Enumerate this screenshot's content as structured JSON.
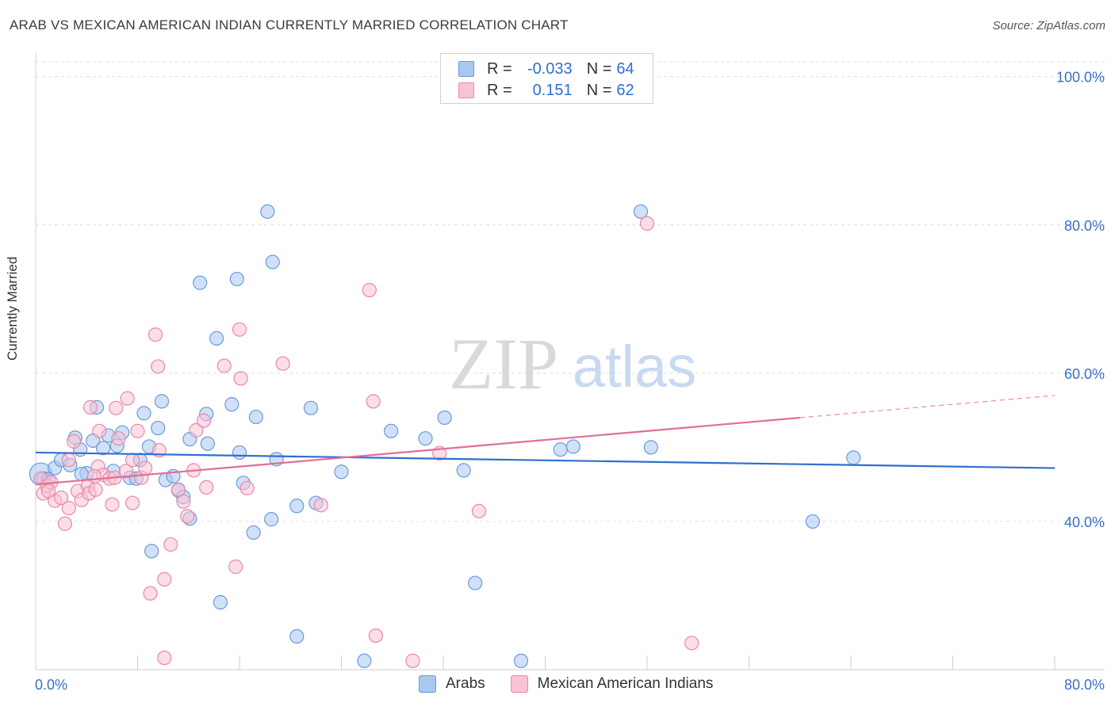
{
  "header": {
    "title": "ARAB VS MEXICAN AMERICAN INDIAN CURRENTLY MARRIED CORRELATION CHART",
    "source": "Source: ZipAtlas.com"
  },
  "watermark": {
    "zip": "ZIP",
    "atlas": "atlas"
  },
  "legend": {
    "rows": [
      {
        "r_label": "R =",
        "r_value": "-0.033",
        "n_label": "N =",
        "n_value": "64",
        "color": "#a9c8f0",
        "stroke": "#6a9ad8"
      },
      {
        "r_label": "R =",
        "r_value": "0.151",
        "n_label": "N =",
        "n_value": "62",
        "color": "#f8c3d3",
        "stroke": "#e889a7"
      }
    ]
  },
  "bottom_legend": {
    "items": [
      {
        "label": "Arabs",
        "color": "#a9c8f0",
        "stroke": "#6a9ad8"
      },
      {
        "label": "Mexican American Indians",
        "color": "#f8c3d3",
        "stroke": "#e889a7"
      }
    ]
  },
  "chart_data": {
    "type": "scatter",
    "title": "ARAB VS MEXICAN AMERICAN INDIAN CURRENTLY MARRIED CORRELATION CHART",
    "xlabel": "",
    "ylabel": "Currently Married",
    "xlim": [
      0,
      80
    ],
    "ylim": [
      20,
      102
    ],
    "x_tick_labels": [
      "0.0%",
      "80.0%"
    ],
    "y_ticks": [
      40,
      60,
      80,
      100
    ],
    "y_tick_labels": [
      "40.0%",
      "60.0%",
      "80.0%",
      "100.0%"
    ],
    "grid": true,
    "legend_position": "top-center",
    "series": [
      {
        "name": "Arabs",
        "color": "#6a9ad8",
        "fill": "#a9c8f0",
        "trend": {
          "x": [
            0,
            80
          ],
          "y": [
            49.3,
            47.2
          ],
          "dashed_from": null
        },
        "points": [
          [
            0.4,
            46.4
          ],
          [
            0.6,
            45.8
          ],
          [
            1.0,
            45.7
          ],
          [
            1.5,
            47.2
          ],
          [
            2.0,
            48.3
          ],
          [
            2.7,
            47.6
          ],
          [
            3.1,
            51.3
          ],
          [
            3.5,
            49.7
          ],
          [
            4.0,
            46.5
          ],
          [
            4.5,
            50.9
          ],
          [
            4.8,
            55.4
          ],
          [
            5.3,
            49.9
          ],
          [
            5.7,
            51.6
          ],
          [
            6.1,
            46.8
          ],
          [
            6.4,
            50.2
          ],
          [
            6.8,
            52.0
          ],
          [
            7.4,
            45.9
          ],
          [
            7.9,
            45.8
          ],
          [
            8.2,
            48.3
          ],
          [
            8.5,
            54.6
          ],
          [
            8.9,
            50.1
          ],
          [
            9.6,
            52.6
          ],
          [
            9.9,
            56.2
          ],
          [
            10.2,
            45.6
          ],
          [
            10.8,
            46.1
          ],
          [
            11.2,
            44.2
          ],
          [
            11.6,
            43.3
          ],
          [
            12.1,
            40.4
          ],
          [
            12.9,
            72.2
          ],
          [
            12.1,
            51.1
          ],
          [
            13.4,
            54.5
          ],
          [
            13.5,
            50.5
          ],
          [
            14.2,
            64.7
          ],
          [
            14.5,
            29.1
          ],
          [
            15.4,
            55.8
          ],
          [
            15.8,
            72.7
          ],
          [
            16.0,
            49.3
          ],
          [
            16.3,
            45.2
          ],
          [
            17.1,
            38.5
          ],
          [
            17.3,
            54.1
          ],
          [
            18.2,
            81.8
          ],
          [
            18.6,
            75.0
          ],
          [
            18.5,
            40.3
          ],
          [
            18.9,
            48.4
          ],
          [
            20.5,
            42.1
          ],
          [
            21.6,
            55.3
          ],
          [
            22.0,
            42.5
          ],
          [
            24.0,
            46.7
          ],
          [
            20.5,
            24.5
          ],
          [
            25.8,
            21.2
          ],
          [
            27.9,
            52.2
          ],
          [
            30.6,
            51.2
          ],
          [
            32.1,
            54.0
          ],
          [
            33.6,
            46.9
          ],
          [
            34.5,
            31.7
          ],
          [
            38.1,
            21.2
          ],
          [
            41.2,
            49.7
          ],
          [
            42.2,
            50.1
          ],
          [
            47.5,
            81.8
          ],
          [
            48.3,
            50.0
          ],
          [
            61.0,
            40.0
          ],
          [
            64.2,
            48.6
          ],
          [
            3.6,
            46.4
          ],
          [
            9.1,
            36.0
          ]
        ]
      },
      {
        "name": "Mexican American Indians",
        "color": "#e889a7",
        "fill": "#f8c3d3",
        "trend": {
          "x": [
            0,
            60,
            80
          ],
          "y": [
            45.0,
            54.0,
            57.0
          ],
          "dashed_from": 60
        },
        "points": [
          [
            0.4,
            45.8
          ],
          [
            0.6,
            43.8
          ],
          [
            0.9,
            44.8
          ],
          [
            1.2,
            45.3
          ],
          [
            1.5,
            42.8
          ],
          [
            2.0,
            43.2
          ],
          [
            2.3,
            39.7
          ],
          [
            2.6,
            41.8
          ],
          [
            3.0,
            50.8
          ],
          [
            3.3,
            44.1
          ],
          [
            3.6,
            42.9
          ],
          [
            4.1,
            44.8
          ],
          [
            4.2,
            43.8
          ],
          [
            4.3,
            55.4
          ],
          [
            4.7,
            44.3
          ],
          [
            4.9,
            47.4
          ],
          [
            5.0,
            52.2
          ],
          [
            5.3,
            46.3
          ],
          [
            5.8,
            45.8
          ],
          [
            6.0,
            42.3
          ],
          [
            6.2,
            45.9
          ],
          [
            6.5,
            51.2
          ],
          [
            7.1,
            46.8
          ],
          [
            7.2,
            56.6
          ],
          [
            7.6,
            48.3
          ],
          [
            8.0,
            52.2
          ],
          [
            8.3,
            45.9
          ],
          [
            8.6,
            47.2
          ],
          [
            9.0,
            30.3
          ],
          [
            9.4,
            65.2
          ],
          [
            9.6,
            60.9
          ],
          [
            9.7,
            49.6
          ],
          [
            10.1,
            32.2
          ],
          [
            10.1,
            21.6
          ],
          [
            10.6,
            36.9
          ],
          [
            11.2,
            44.3
          ],
          [
            11.6,
            42.7
          ],
          [
            11.9,
            40.7
          ],
          [
            12.4,
            46.9
          ],
          [
            12.6,
            52.3
          ],
          [
            13.2,
            53.6
          ],
          [
            13.4,
            44.6
          ],
          [
            14.8,
            61.0
          ],
          [
            15.7,
            33.9
          ],
          [
            16.0,
            65.9
          ],
          [
            16.1,
            59.3
          ],
          [
            16.6,
            44.5
          ],
          [
            19.4,
            61.3
          ],
          [
            22.4,
            42.2
          ],
          [
            26.2,
            71.2
          ],
          [
            26.7,
            24.6
          ],
          [
            26.5,
            56.2
          ],
          [
            29.6,
            21.2
          ],
          [
            31.7,
            49.2
          ],
          [
            34.8,
            41.4
          ],
          [
            48.0,
            80.2
          ],
          [
            51.5,
            23.6
          ],
          [
            1.0,
            44.1
          ],
          [
            2.6,
            48.3
          ],
          [
            6.3,
            55.3
          ],
          [
            7.6,
            42.5
          ],
          [
            4.6,
            46.1
          ]
        ]
      }
    ]
  }
}
